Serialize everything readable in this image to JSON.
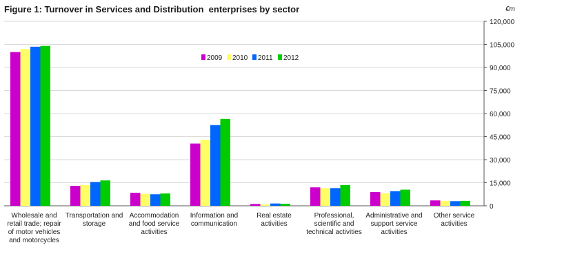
{
  "chart_data": {
    "type": "bar",
    "title": "Figure 1: Turnover in Services and Distribution  enterprises by sector",
    "unit": "€m",
    "ylim": [
      0,
      120000
    ],
    "yticks": [
      "0",
      "15,000",
      "30,000",
      "45,000",
      "60,000",
      "75,000",
      "90,000",
      "105,000",
      "120,000"
    ],
    "categories": [
      "Wholesale and retail trade; repair of motor vehicles and motorcycles",
      "Transportation and storage",
      "Accommodation and food service activities",
      "Information and communication",
      "Real estate activities",
      "Professional, scientific and technical activities",
      "Administrative and support service activities",
      "Other service activities"
    ],
    "series": [
      {
        "name": "2009",
        "color": "#cc00cc",
        "values": [
          100000,
          13000,
          8500,
          40500,
          1200,
          12000,
          9000,
          3500
        ]
      },
      {
        "name": "2010",
        "color": "#ffff66",
        "values": [
          102000,
          13500,
          7800,
          43000,
          900,
          11500,
          8200,
          3200
        ]
      },
      {
        "name": "2011",
        "color": "#0066ff",
        "values": [
          103500,
          15500,
          7500,
          52500,
          1500,
          11500,
          9500,
          3000
        ]
      },
      {
        "name": "2012",
        "color": "#00cc00",
        "values": [
          104000,
          16500,
          8000,
          56500,
          1300,
          13500,
          10500,
          3200
        ]
      }
    ],
    "legend_position": "top-center",
    "grid": true
  }
}
